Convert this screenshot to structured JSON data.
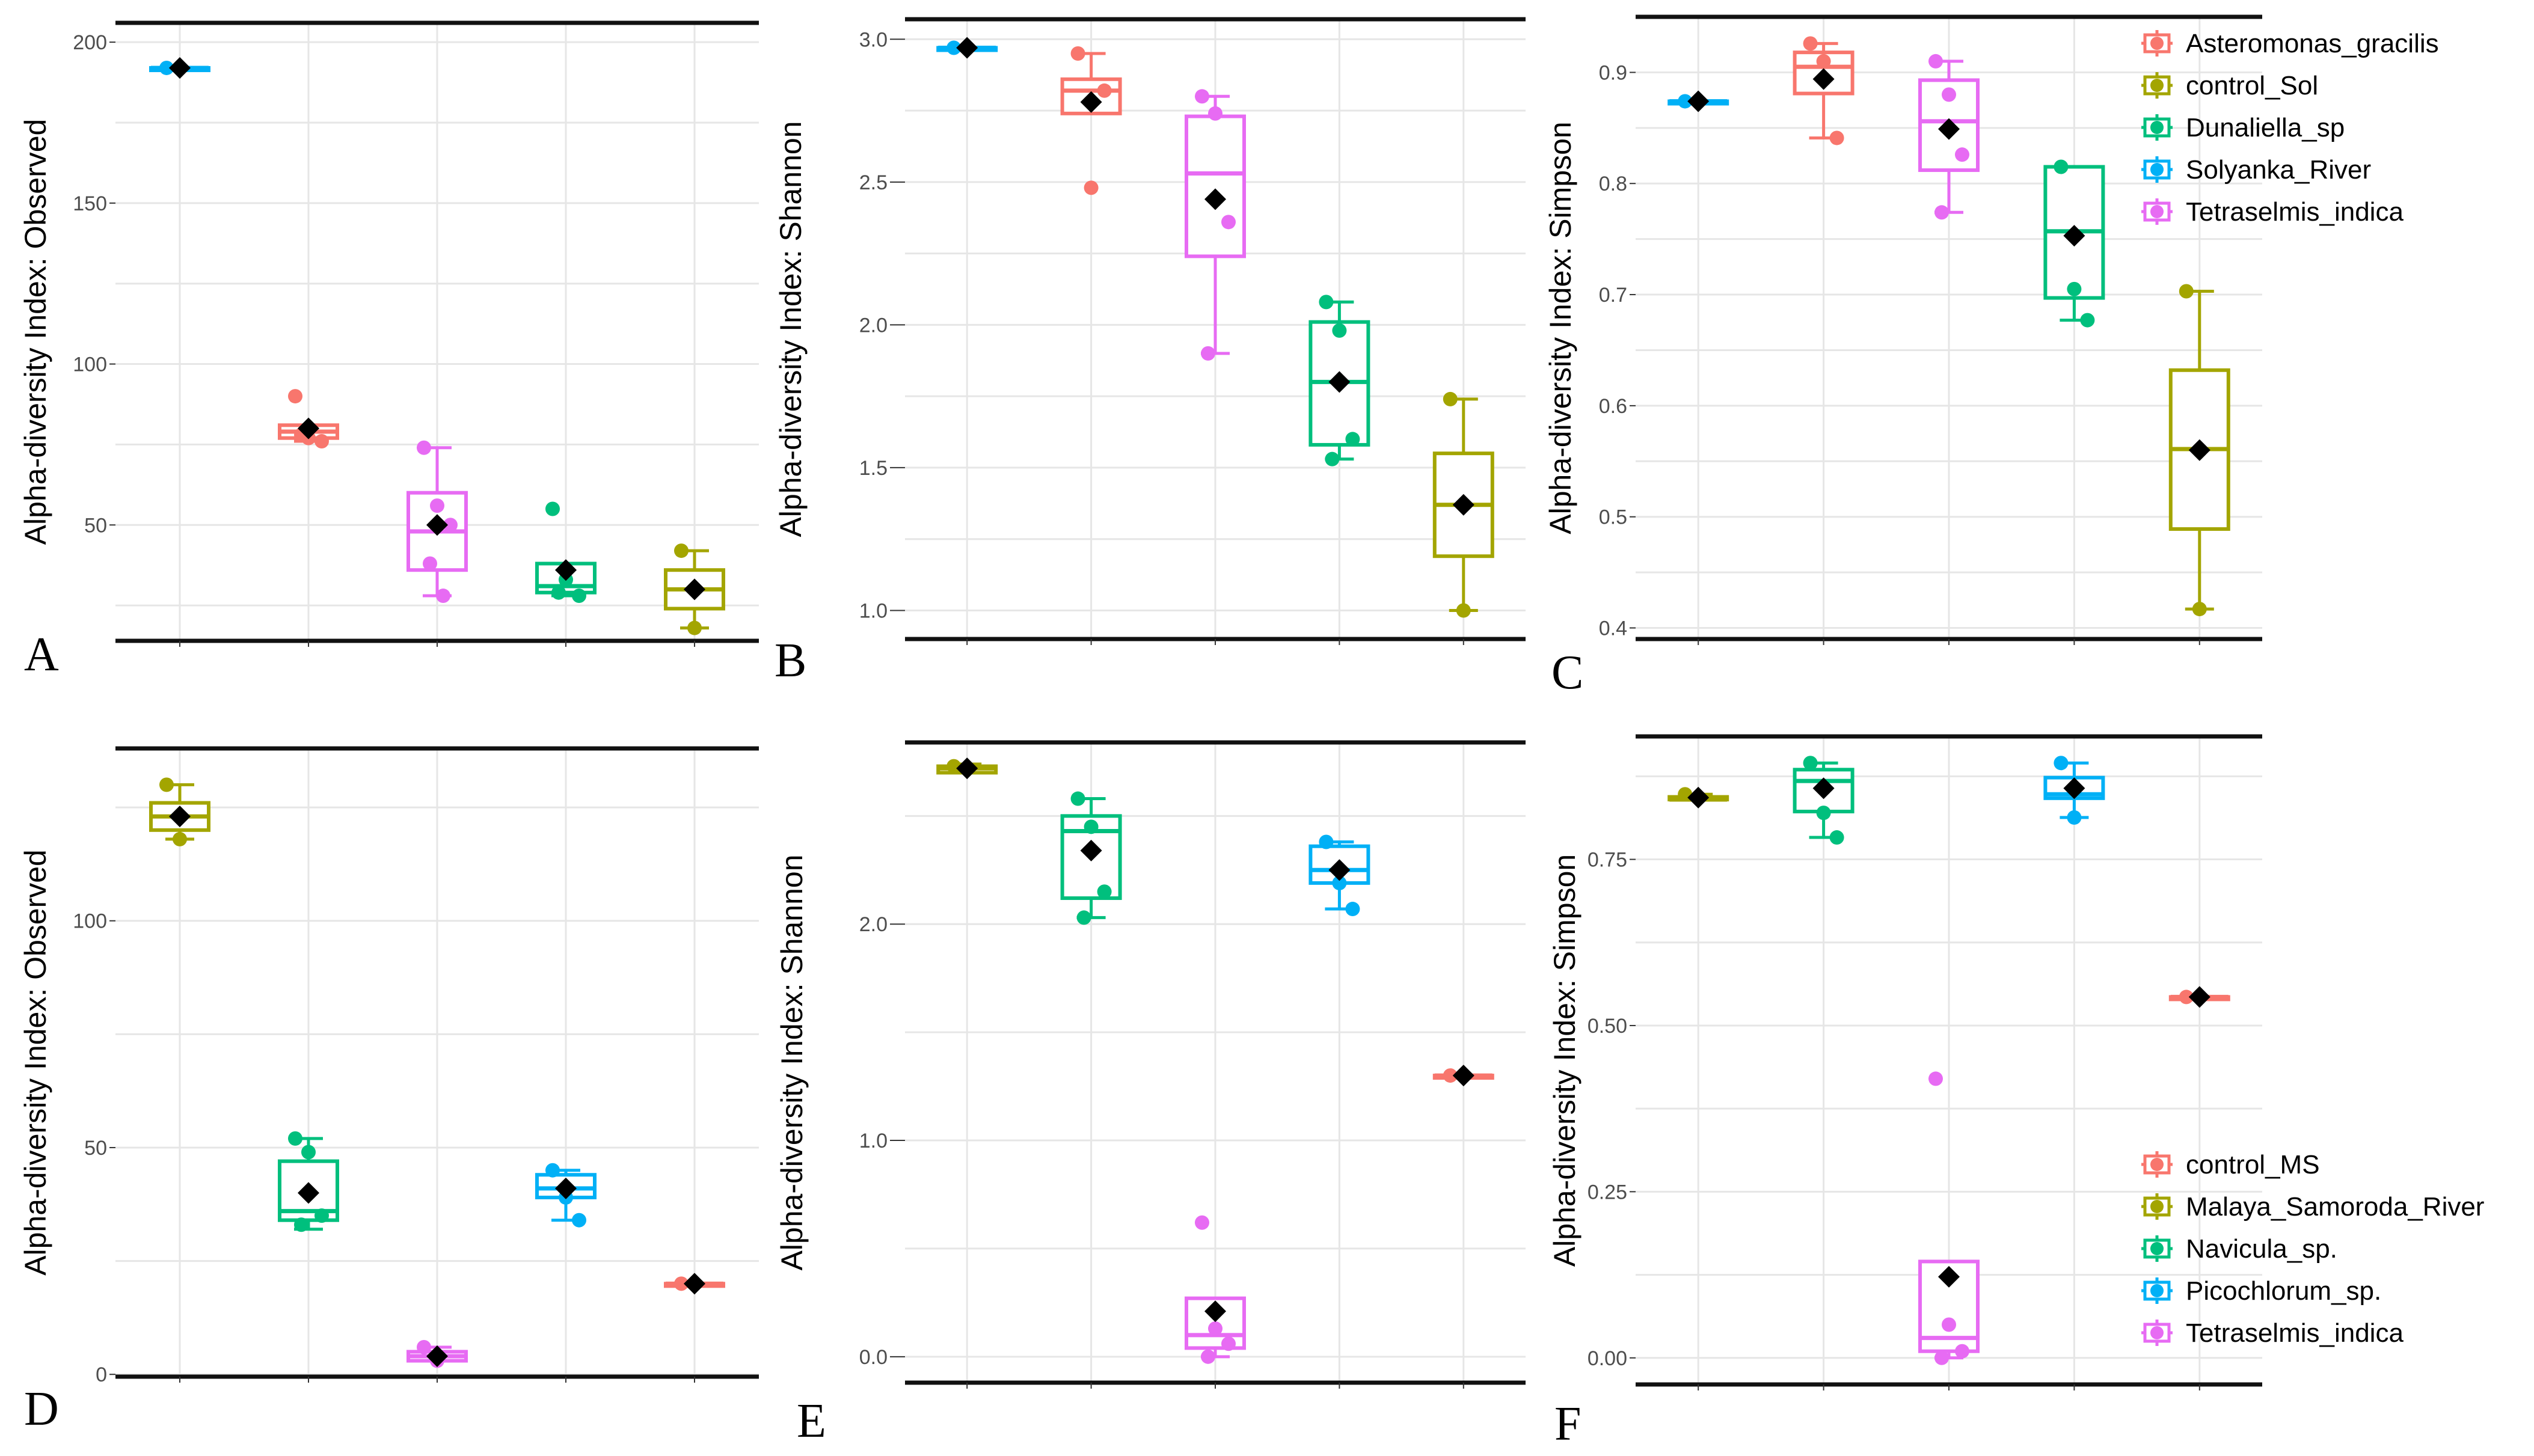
{
  "colors": {
    "Asteromonas_gracilis": "#F8766D",
    "control_Sol": "#A3A500",
    "Dunaliella_sp": "#00BF7D",
    "Solyanka_River": "#00B0F6",
    "Tetraselmis_indica": "#E76BF3",
    "control_MS": "#F8766D",
    "Malaya_Samoroda_River": "#A3A500",
    "Navicula_sp.": "#00BF7D",
    "Picochlorum_sp.": "#00B0F6",
    "mean_marker": "#000000",
    "grid": "#e6e6e6"
  },
  "legends": {
    "top": [
      "Asteromonas_gracilis",
      "control_Sol",
      "Dunaliella_sp",
      "Solyanka_River",
      "Tetraselmis_indica"
    ],
    "bottom": [
      "control_MS",
      "Malaya_Samoroda_River",
      "Navicula_sp.",
      "Picochlorum_sp.",
      "Tetraselmis_indica"
    ]
  },
  "chart_data": [
    {
      "id": "A",
      "type": "box",
      "letter": "A",
      "ylabel": "Alpha-diversity Index: Observed",
      "ylim": [
        14,
        206
      ],
      "yticks": [
        50,
        100,
        150,
        200
      ],
      "groups": [
        {
          "name": "Solyanka_River",
          "min": 192,
          "q1": 192,
          "median": 192,
          "q3": 192,
          "max": 192,
          "mean": 192,
          "points": [
            192
          ]
        },
        {
          "name": "Asteromonas_gracilis",
          "min": 76,
          "q1": 77,
          "median": 79,
          "q3": 81,
          "max": 81,
          "mean": 80,
          "points": [
            90,
            77,
            76,
            78
          ]
        },
        {
          "name": "Tetraselmis_indica",
          "min": 28,
          "q1": 36,
          "median": 48,
          "q3": 60,
          "max": 74,
          "mean": 50,
          "points": [
            74,
            56,
            50,
            38,
            28
          ]
        },
        {
          "name": "Dunaliella_sp",
          "min": 28,
          "q1": 29,
          "median": 31,
          "q3": 38,
          "max": 38,
          "mean": 36,
          "points": [
            55,
            33,
            28,
            29
          ]
        },
        {
          "name": "control_Sol",
          "min": 18,
          "q1": 24,
          "median": 30,
          "q3": 36,
          "max": 42,
          "mean": 30,
          "points": [
            42,
            18
          ]
        }
      ]
    },
    {
      "id": "B",
      "type": "box",
      "letter": "B",
      "ylabel": "Alpha-diversity Index: Shannon",
      "ylim": [
        0.9,
        3.07
      ],
      "yticks": [
        1.0,
        1.5,
        2.0,
        2.5,
        3.0
      ],
      "tick_labels": [
        "1.0",
        "1.5",
        "2.0",
        "2.5",
        "3.0"
      ],
      "groups": [
        {
          "name": "Solyanka_River",
          "min": 2.97,
          "q1": 2.97,
          "median": 2.97,
          "q3": 2.97,
          "max": 2.97,
          "mean": 2.97,
          "points": [
            2.97
          ]
        },
        {
          "name": "Asteromonas_gracilis",
          "min": 2.74,
          "q1": 2.74,
          "median": 2.82,
          "q3": 2.86,
          "max": 2.95,
          "mean": 2.78,
          "points": [
            2.95,
            2.48,
            2.82
          ]
        },
        {
          "name": "Tetraselmis_indica",
          "min": 1.9,
          "q1": 2.24,
          "median": 2.53,
          "q3": 2.73,
          "max": 2.8,
          "mean": 2.44,
          "points": [
            2.8,
            2.74,
            2.36,
            1.9
          ]
        },
        {
          "name": "Dunaliella_sp",
          "min": 1.53,
          "q1": 1.58,
          "median": 1.8,
          "q3": 2.01,
          "max": 2.08,
          "mean": 1.8,
          "points": [
            2.08,
            1.98,
            1.6,
            1.53
          ]
        },
        {
          "name": "control_Sol",
          "min": 1.0,
          "q1": 1.19,
          "median": 1.37,
          "q3": 1.55,
          "max": 1.74,
          "mean": 1.37,
          "points": [
            1.74,
            1.0
          ]
        }
      ]
    },
    {
      "id": "C",
      "type": "box",
      "letter": "C",
      "ylabel": "Alpha-diversity Index: Simpson",
      "ylim": [
        0.39,
        0.95
      ],
      "yticks": [
        0.4,
        0.5,
        0.6,
        0.7,
        0.8,
        0.9
      ],
      "tick_labels": [
        "0.4",
        "0.5",
        "0.6",
        "0.7",
        "0.8",
        "0.9"
      ],
      "groups": [
        {
          "name": "Solyanka_River",
          "min": 0.874,
          "q1": 0.874,
          "median": 0.874,
          "q3": 0.874,
          "max": 0.874,
          "mean": 0.874,
          "points": [
            0.874
          ]
        },
        {
          "name": "Asteromonas_gracilis",
          "min": 0.841,
          "q1": 0.881,
          "median": 0.905,
          "q3": 0.918,
          "max": 0.926,
          "mean": 0.894,
          "points": [
            0.926,
            0.91,
            0.841
          ]
        },
        {
          "name": "Tetraselmis_indica",
          "min": 0.774,
          "q1": 0.812,
          "median": 0.856,
          "q3": 0.893,
          "max": 0.91,
          "mean": 0.849,
          "points": [
            0.91,
            0.88,
            0.826,
            0.774
          ]
        },
        {
          "name": "Dunaliella_sp",
          "min": 0.677,
          "q1": 0.697,
          "median": 0.757,
          "q3": 0.815,
          "max": 0.815,
          "mean": 0.753,
          "points": [
            0.815,
            0.705,
            0.677
          ]
        },
        {
          "name": "control_Sol",
          "min": 0.417,
          "q1": 0.489,
          "median": 0.561,
          "q3": 0.632,
          "max": 0.703,
          "mean": 0.56,
          "points": [
            0.703,
            0.417
          ]
        }
      ]
    },
    {
      "id": "D",
      "type": "box",
      "letter": "D",
      "ylabel": "Alpha-diversity Index: Observed",
      "ylim": [
        -0.5,
        138
      ],
      "yticks": [
        0,
        50,
        100
      ],
      "tick_labels": [
        "0",
        "50",
        "100"
      ],
      "groups": [
        {
          "name": "Malaya_Samoroda_River",
          "min": 118,
          "q1": 120,
          "median": 123,
          "q3": 126,
          "max": 130,
          "mean": 123,
          "points": [
            130,
            118
          ]
        },
        {
          "name": "Navicula_sp.",
          "min": 32,
          "q1": 34,
          "median": 36,
          "q3": 47,
          "max": 52,
          "mean": 40,
          "points": [
            52,
            49,
            35,
            33
          ]
        },
        {
          "name": "Tetraselmis_indica",
          "min": 3,
          "q1": 3,
          "median": 4,
          "q3": 5,
          "max": 6,
          "mean": 4,
          "points": [
            6,
            3
          ]
        },
        {
          "name": "Picochlorum_sp.",
          "min": 34,
          "q1": 39,
          "median": 41,
          "q3": 44,
          "max": 45,
          "mean": 41,
          "points": [
            45,
            39,
            34
          ]
        },
        {
          "name": "control_MS",
          "min": 20,
          "q1": 20,
          "median": 20,
          "q3": 20,
          "max": 20,
          "mean": 20,
          "points": [
            20
          ]
        }
      ]
    },
    {
      "id": "E",
      "type": "box",
      "letter": "E",
      "ylabel": "Alpha-diversity Index: Shannon",
      "ylim": [
        -0.12,
        2.84
      ],
      "yticks": [
        0.0,
        1.0,
        2.0
      ],
      "tick_labels": [
        "0.0",
        "1.0",
        "2.0"
      ],
      "groups": [
        {
          "name": "Malaya_Samoroda_River",
          "min": 2.7,
          "q1": 2.7,
          "median": 2.72,
          "q3": 2.73,
          "max": 2.74,
          "mean": 2.72,
          "points": [
            2.73
          ]
        },
        {
          "name": "Navicula_sp.",
          "min": 2.03,
          "q1": 2.12,
          "median": 2.43,
          "q3": 2.5,
          "max": 2.58,
          "mean": 2.34,
          "points": [
            2.58,
            2.45,
            2.15,
            2.03
          ]
        },
        {
          "name": "Tetraselmis_indica",
          "min": 0.0,
          "q1": 0.04,
          "median": 0.1,
          "q3": 0.27,
          "max": 0.27,
          "mean": 0.21,
          "points": [
            0.62,
            0.13,
            0.06,
            0.0
          ]
        },
        {
          "name": "Picochlorum_sp.",
          "min": 2.07,
          "q1": 2.19,
          "median": 2.25,
          "q3": 2.36,
          "max": 2.38,
          "mean": 2.25,
          "points": [
            2.38,
            2.19,
            2.07
          ]
        },
        {
          "name": "control_MS",
          "min": 1.3,
          "q1": 1.3,
          "median": 1.3,
          "q3": 1.3,
          "max": 1.3,
          "mean": 1.3,
          "points": [
            1.3
          ]
        }
      ]
    },
    {
      "id": "F",
      "type": "box",
      "letter": "F",
      "ylabel": "Alpha-diversity Index: Simpson",
      "ylim": [
        -0.04,
        0.935
      ],
      "yticks": [
        0.0,
        0.25,
        0.5,
        0.75
      ],
      "tick_labels": [
        "0.00",
        "0.25",
        "0.50",
        "0.75"
      ],
      "groups": [
        {
          "name": "Malaya_Samoroda_River",
          "min": 0.84,
          "q1": 0.84,
          "median": 0.84,
          "q3": 0.844,
          "max": 0.848,
          "mean": 0.843,
          "points": [
            0.848
          ]
        },
        {
          "name": "Navicula_sp.",
          "min": 0.783,
          "q1": 0.822,
          "median": 0.868,
          "q3": 0.885,
          "max": 0.895,
          "mean": 0.857,
          "points": [
            0.895,
            0.82,
            0.783
          ]
        },
        {
          "name": "Tetraselmis_indica",
          "min": 0.0,
          "q1": 0.01,
          "median": 0.03,
          "q3": 0.145,
          "max": 0.145,
          "mean": 0.122,
          "points": [
            0.42,
            0.05,
            0.01,
            0.0
          ]
        },
        {
          "name": "Picochlorum_sp.",
          "min": 0.813,
          "q1": 0.842,
          "median": 0.848,
          "q3": 0.873,
          "max": 0.895,
          "mean": 0.857,
          "points": [
            0.895,
            0.813
          ]
        },
        {
          "name": "control_MS",
          "min": 0.543,
          "q1": 0.543,
          "median": 0.543,
          "q3": 0.543,
          "max": 0.543,
          "mean": 0.543,
          "points": [
            0.543
          ]
        }
      ]
    }
  ]
}
